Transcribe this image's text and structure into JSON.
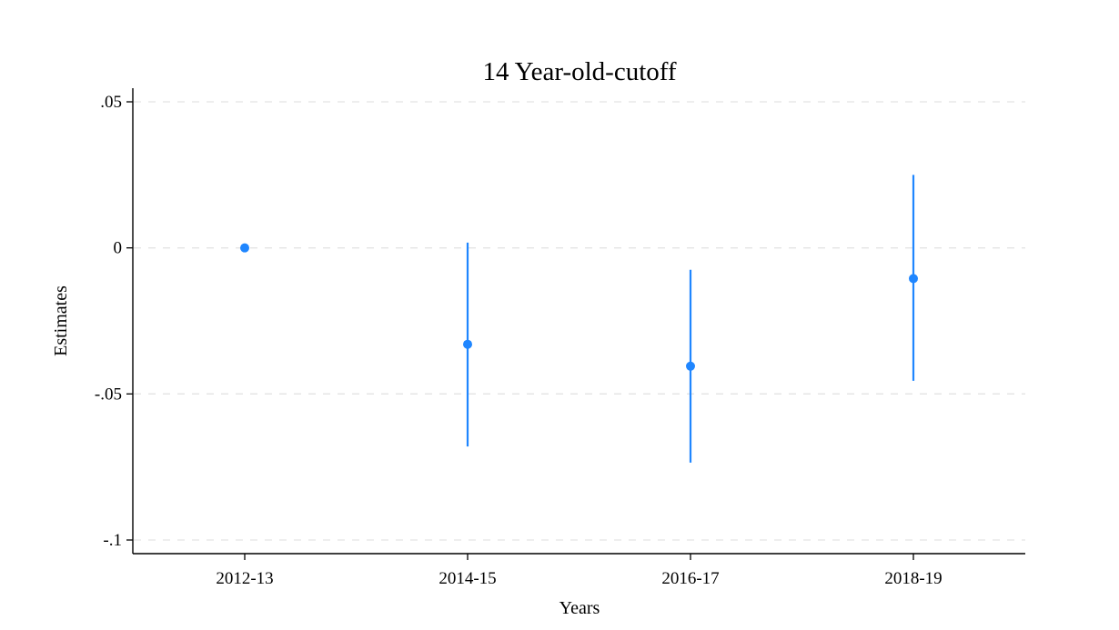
{
  "chart_data": {
    "type": "scatter",
    "title": "14 Year-old-cutoff",
    "xlabel": "Years",
    "ylabel": "Estimates",
    "categories": [
      "2012-13",
      "2014-15",
      "2016-17",
      "2018-19"
    ],
    "estimates": [
      0,
      -0.033,
      -0.0405,
      -0.0105
    ],
    "ci_lower": [
      0,
      -0.068,
      -0.0735,
      -0.0455
    ],
    "ci_upper": [
      0,
      0.0018,
      -0.0075,
      0.025
    ],
    "ylim": [
      -0.1,
      0.05
    ],
    "yticks": [
      0.05,
      0,
      -0.05,
      -0.1
    ],
    "ytick_labels": [
      ".05",
      "0",
      "-.05",
      "-.1"
    ],
    "grid": true,
    "grid_style": "dashed",
    "legend": "none",
    "marker_color": "#1f86ff",
    "line_color": "#1f86ff",
    "grid_color": "#e4e4e4",
    "axis_color": "#000000"
  }
}
